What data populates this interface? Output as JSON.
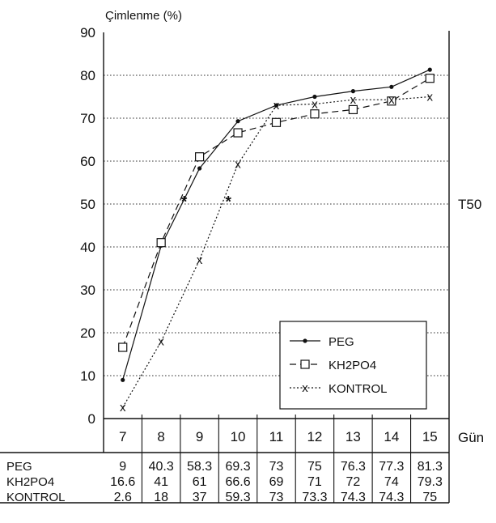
{
  "chart_data": {
    "type": "line",
    "ylabel": "Çimlenme (%)",
    "xlabel": "Gün",
    "reference_label": "T50",
    "reference_value": 50,
    "ylim": [
      0,
      90
    ],
    "yticks": [
      0,
      10,
      20,
      30,
      40,
      50,
      60,
      70,
      80,
      90
    ],
    "categories": [
      "7",
      "8",
      "9",
      "10",
      "11",
      "12",
      "13",
      "14",
      "15"
    ],
    "grid": "horizontal dotted",
    "legend_position": "lower-right",
    "series": [
      {
        "name": "PEG",
        "marker": "dot",
        "line": "solid",
        "values": [
          9,
          40.3,
          58.3,
          69.3,
          73,
          75,
          76.3,
          77.3,
          81.3
        ],
        "table_values": [
          "9",
          "40.3",
          "58.3",
          "69.3",
          "73",
          "75",
          "76.3",
          "77.3",
          "81.3"
        ]
      },
      {
        "name": "KH2PO4",
        "marker": "square",
        "line": "dashed",
        "values": [
          16.6,
          41,
          61,
          66.6,
          69,
          71,
          72,
          74,
          79.3
        ],
        "table_values": [
          "16.6",
          "41",
          "61",
          "66.6",
          "69",
          "71",
          "72",
          "74",
          "79.3"
        ]
      },
      {
        "name": "KONTROL",
        "marker": "x",
        "line": "dotted",
        "values": [
          2.6,
          18,
          37,
          59.3,
          73,
          73.3,
          74.3,
          74.3,
          75
        ],
        "table_values": [
          "2.6",
          "18",
          "37",
          "59.3",
          "73",
          "73.3",
          "74.3",
          "74.3",
          "75"
        ]
      }
    ],
    "t50_markers": [
      {
        "x": 8.6,
        "y": 51
      },
      {
        "x": 9.75,
        "y": 51
      }
    ]
  }
}
